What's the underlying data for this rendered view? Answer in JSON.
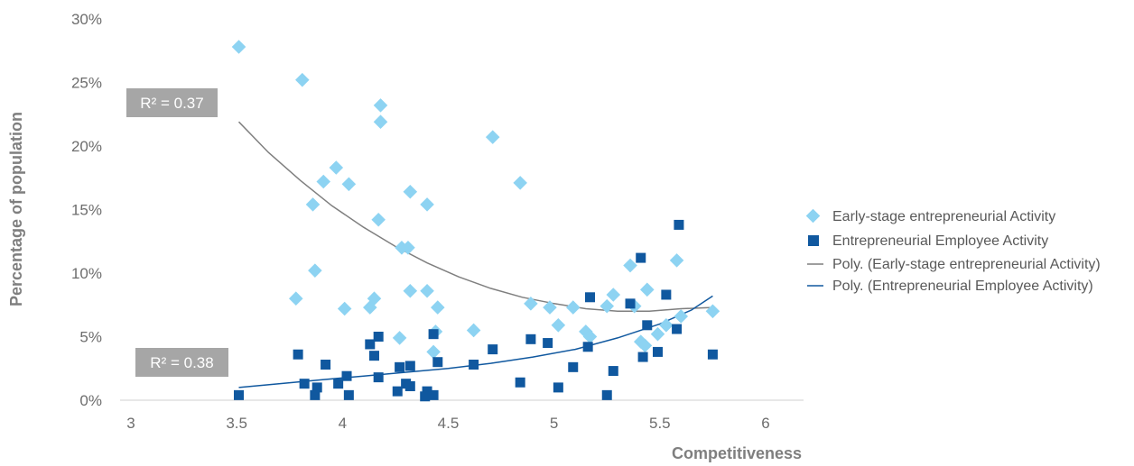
{
  "chart_data": {
    "type": "scatter",
    "xlabel": "Competitiveness",
    "ylabel": "Percentage of population",
    "xlim": [
      3,
      6
    ],
    "ylim": [
      0,
      30
    ],
    "x_ticks": [
      3,
      3.5,
      4,
      4.5,
      5,
      5.5,
      6
    ],
    "x_tick_labels": [
      "3",
      "3.5",
      "4",
      "4.5",
      "5",
      "5.5",
      "6"
    ],
    "y_ticks": [
      0,
      5,
      10,
      15,
      20,
      25,
      30
    ],
    "y_tick_labels": [
      "0%",
      "5%",
      "10%",
      "15%",
      "20%",
      "25%",
      "30%"
    ],
    "grid": false,
    "legend_position": "right",
    "series": [
      {
        "name": "Early-stage entrepreneurial Activity",
        "marker": "diamond",
        "color": "#8dd3f2",
        "points": [
          [
            3.51,
            27.8
          ],
          [
            3.81,
            25.2
          ],
          [
            4.18,
            23.2
          ],
          [
            4.18,
            21.9
          ],
          [
            4.71,
            20.7
          ],
          [
            3.97,
            18.3
          ],
          [
            3.91,
            17.2
          ],
          [
            4.03,
            17.0
          ],
          [
            4.84,
            17.1
          ],
          [
            4.32,
            16.4
          ],
          [
            3.86,
            15.4
          ],
          [
            4.4,
            15.4
          ],
          [
            4.17,
            14.2
          ],
          [
            4.28,
            12.0
          ],
          [
            4.31,
            12.0
          ],
          [
            5.58,
            11.0
          ],
          [
            5.36,
            10.6
          ],
          [
            3.87,
            10.2
          ],
          [
            5.44,
            8.7
          ],
          [
            3.78,
            8.0
          ],
          [
            4.15,
            8.0
          ],
          [
            4.32,
            8.6
          ],
          [
            4.4,
            8.6
          ],
          [
            5.28,
            8.3
          ],
          [
            4.89,
            7.6
          ],
          [
            4.13,
            7.3
          ],
          [
            4.45,
            7.3
          ],
          [
            4.01,
            7.2
          ],
          [
            4.98,
            7.3
          ],
          [
            5.09,
            7.3
          ],
          [
            5.25,
            7.4
          ],
          [
            5.38,
            7.4
          ],
          [
            5.75,
            7.0
          ],
          [
            5.6,
            6.6
          ],
          [
            5.02,
            5.9
          ],
          [
            5.53,
            5.9
          ],
          [
            4.62,
            5.5
          ],
          [
            4.44,
            5.4
          ],
          [
            5.15,
            5.4
          ],
          [
            5.17,
            5.0
          ],
          [
            5.49,
            5.2
          ],
          [
            4.27,
            4.9
          ],
          [
            5.41,
            4.6
          ],
          [
            5.43,
            4.3
          ],
          [
            4.43,
            3.8
          ]
        ]
      },
      {
        "name": "Entrepreneurial Employee Activity",
        "marker": "square",
        "color": "#10589f",
        "points": [
          [
            5.59,
            13.8
          ],
          [
            5.41,
            11.2
          ],
          [
            5.53,
            8.3
          ],
          [
            5.17,
            8.1
          ],
          [
            5.36,
            7.6
          ],
          [
            5.44,
            5.9
          ],
          [
            5.58,
            5.6
          ],
          [
            4.43,
            5.2
          ],
          [
            4.17,
            5.0
          ],
          [
            4.89,
            4.8
          ],
          [
            4.97,
            4.5
          ],
          [
            4.13,
            4.4
          ],
          [
            5.16,
            4.2
          ],
          [
            4.71,
            4.0
          ],
          [
            5.49,
            3.8
          ],
          [
            3.79,
            3.6
          ],
          [
            4.15,
            3.5
          ],
          [
            5.42,
            3.4
          ],
          [
            5.75,
            3.6
          ],
          [
            4.45,
            3.0
          ],
          [
            3.92,
            2.8
          ],
          [
            4.62,
            2.8
          ],
          [
            4.27,
            2.6
          ],
          [
            4.32,
            2.7
          ],
          [
            5.09,
            2.6
          ],
          [
            5.28,
            2.3
          ],
          [
            4.02,
            1.9
          ],
          [
            4.17,
            1.8
          ],
          [
            3.82,
            1.3
          ],
          [
            3.98,
            1.3
          ],
          [
            4.3,
            1.3
          ],
          [
            4.84,
            1.4
          ],
          [
            3.88,
            1.0
          ],
          [
            4.32,
            1.1
          ],
          [
            5.02,
            1.0
          ],
          [
            4.26,
            0.7
          ],
          [
            4.4,
            0.7
          ],
          [
            3.51,
            0.4
          ],
          [
            3.87,
            0.4
          ],
          [
            4.03,
            0.4
          ],
          [
            4.39,
            0.3
          ],
          [
            4.43,
            0.4
          ],
          [
            5.25,
            0.4
          ]
        ]
      }
    ],
    "trendlines": [
      {
        "name": "Poly. (Early-stage entrepreneurial Activity)",
        "color": "#7f7f7f",
        "label": "R² = 0.37",
        "points": [
          [
            3.51,
            21.9
          ],
          [
            3.65,
            19.5
          ],
          [
            3.8,
            17.3
          ],
          [
            3.95,
            15.3
          ],
          [
            4.1,
            13.6
          ],
          [
            4.25,
            12.1
          ],
          [
            4.4,
            10.8
          ],
          [
            4.55,
            9.7
          ],
          [
            4.7,
            8.8
          ],
          [
            4.85,
            8.1
          ],
          [
            5.0,
            7.6
          ],
          [
            5.15,
            7.2
          ],
          [
            5.3,
            7.0
          ],
          [
            5.45,
            7.0
          ],
          [
            5.6,
            7.2
          ],
          [
            5.75,
            7.3
          ]
        ]
      },
      {
        "name": "Poly. (Entrepreneurial Employee Activity)",
        "color": "#10589f",
        "label": "R² = 0.38",
        "points": [
          [
            3.51,
            1.0
          ],
          [
            3.7,
            1.3
          ],
          [
            3.9,
            1.6
          ],
          [
            4.1,
            1.9
          ],
          [
            4.3,
            2.2
          ],
          [
            4.5,
            2.5
          ],
          [
            4.7,
            2.9
          ],
          [
            4.9,
            3.4
          ],
          [
            5.1,
            4.0
          ],
          [
            5.3,
            4.9
          ],
          [
            5.5,
            6.0
          ],
          [
            5.65,
            7.1
          ],
          [
            5.75,
            8.2
          ]
        ]
      }
    ]
  }
}
